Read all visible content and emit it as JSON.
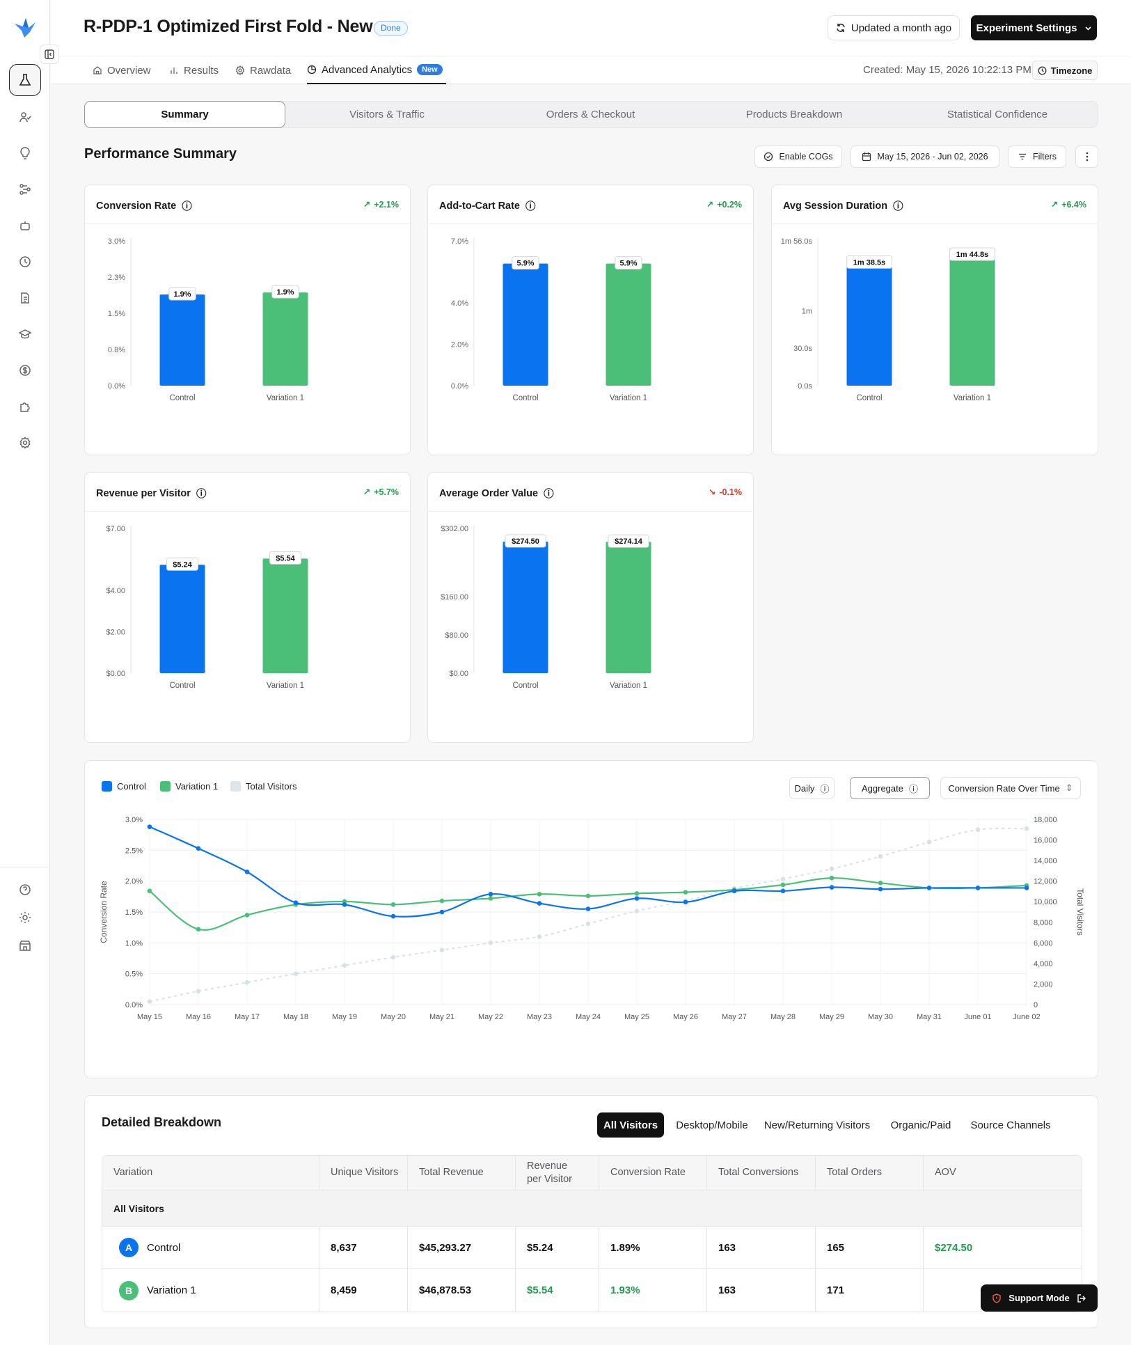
{
  "header": {
    "title": "R-PDP-1 Optimized First Fold - New",
    "status_badge": "Done",
    "updated_label": "Updated a month ago",
    "settings_label": "Experiment Settings"
  },
  "tabs": [
    {
      "label": "Overview",
      "icon": "home-icon"
    },
    {
      "label": "Results",
      "icon": "bar-chart-icon"
    },
    {
      "label": "Rawdata",
      "icon": "gear-icon"
    },
    {
      "label": "Advanced Analytics",
      "icon": "pie-chart-icon",
      "active": true,
      "badge": "New"
    }
  ],
  "created_label": "Created: May 15, 2026 10:22:13 PM",
  "timezone_label": "Timezone",
  "subtabs": [
    "Summary",
    "Visitors & Traffic",
    "Orders & Checkout",
    "Products Breakdown",
    "Statistical Confidence"
  ],
  "performance": {
    "title": "Performance Summary",
    "enable_cogs": "Enable COGs",
    "date_range": "May 15, 2026 - Jun 02, 2026",
    "filters": "Filters"
  },
  "colors": {
    "control": "#0a74f0",
    "variation": "#4bbf78",
    "visitors": "#dde6ea",
    "up": "#1f9d4c",
    "down": "#d33a2c"
  },
  "chart_data": [
    {
      "type": "bar",
      "title": "Conversion Rate",
      "delta": "+2.1%",
      "delta_dir": "up",
      "categories": [
        "Control",
        "Variation 1"
      ],
      "values": [
        1.89,
        1.93
      ],
      "data_labels": [
        "1.9%",
        "1.9%"
      ],
      "ylim": [
        0,
        3.0
      ],
      "y_ticks": [
        0,
        0.75,
        1.5,
        2.25,
        3.0
      ],
      "y_tick_labels": [
        "0.0%",
        "0.8%",
        "1.5%",
        "2.3%",
        "3.0%"
      ]
    },
    {
      "type": "bar",
      "title": "Add-to-Cart Rate",
      "delta": "+0.2%",
      "delta_dir": "up",
      "categories": [
        "Control",
        "Variation 1"
      ],
      "values": [
        5.9,
        5.9
      ],
      "data_labels": [
        "5.9%",
        "5.9%"
      ],
      "ylim": [
        0,
        7.0
      ],
      "y_ticks": [
        0,
        2.0,
        4.0,
        7.0
      ],
      "y_tick_labels": [
        "0.0%",
        "2.0%",
        "4.0%",
        "7.0%"
      ]
    },
    {
      "type": "bar",
      "title": "Avg Session Duration",
      "delta": "+6.4%",
      "delta_dir": "up",
      "categories": [
        "Control",
        "Variation 1"
      ],
      "values": [
        98.5,
        104.8
      ],
      "data_labels": [
        "1m 38.5s",
        "1m 44.8s"
      ],
      "ylim": [
        0,
        116
      ],
      "y_ticks": [
        0,
        30,
        60,
        116
      ],
      "y_tick_labels": [
        "0.0s",
        "30.0s",
        "1m",
        "1m 56.0s"
      ]
    },
    {
      "type": "bar",
      "title": "Revenue per Visitor",
      "delta": "+5.7%",
      "delta_dir": "up",
      "categories": [
        "Control",
        "Variation 1"
      ],
      "values": [
        5.24,
        5.54
      ],
      "data_labels": [
        "$5.24",
        "$5.54"
      ],
      "ylim": [
        0,
        7.0
      ],
      "y_ticks": [
        0,
        2.0,
        4.0,
        7.0
      ],
      "y_tick_labels": [
        "$0.00",
        "$2.00",
        "$4.00",
        "$7.00"
      ]
    },
    {
      "type": "bar",
      "title": "Average Order Value",
      "delta": "-0.1%",
      "delta_dir": "down",
      "categories": [
        "Control",
        "Variation 1"
      ],
      "values": [
        274.5,
        274.14
      ],
      "data_labels": [
        "$274.50",
        "$274.14"
      ],
      "ylim": [
        0,
        302
      ],
      "y_ticks": [
        0,
        80,
        160,
        302
      ],
      "y_tick_labels": [
        "$0.00",
        "$80.00",
        "$160.00",
        "$302.00"
      ]
    },
    {
      "type": "line",
      "legend": [
        "Control",
        "Variation 1",
        "Total Visitors"
      ],
      "buttons": {
        "daily": "Daily",
        "aggregate": "Aggregate",
        "metric_select": "Conversion Rate Over Time"
      },
      "x": [
        "May 15",
        "May 16",
        "May 17",
        "May 18",
        "May 19",
        "May 20",
        "May 21",
        "May 22",
        "May 23",
        "May 24",
        "May 25",
        "May 26",
        "May 27",
        "May 28",
        "May 29",
        "May 30",
        "May 31",
        "June 01",
        "June 02"
      ],
      "ylabel": "Conversion Rate",
      "y2label": "Total Visitors",
      "ylim": [
        0,
        3.0
      ],
      "y_tick_labels": [
        "0.0%",
        "0.5%",
        "1.0%",
        "1.5%",
        "2.0%",
        "2.5%",
        "3.0%"
      ],
      "y2lim": [
        0,
        18000
      ],
      "y2_tick_labels": [
        "0",
        "2,000",
        "4,000",
        "6,000",
        "8,000",
        "10,000",
        "12,000",
        "14,000",
        "16,000",
        "18,000"
      ],
      "series": [
        {
          "name": "Control",
          "axis": "left",
          "values": [
            2.88,
            2.53,
            2.15,
            1.65,
            1.62,
            1.43,
            1.5,
            1.79,
            1.64,
            1.55,
            1.72,
            1.66,
            1.84,
            1.84,
            1.9,
            1.87,
            1.89,
            1.89,
            1.89
          ]
        },
        {
          "name": "Variation 1",
          "axis": "left",
          "values": [
            1.84,
            1.22,
            1.45,
            1.62,
            1.67,
            1.62,
            1.68,
            1.72,
            1.79,
            1.76,
            1.8,
            1.82,
            1.86,
            1.94,
            2.05,
            1.97,
            1.89,
            1.89,
            1.93
          ]
        },
        {
          "name": "Total Visitors",
          "axis": "right",
          "values": [
            300,
            1300,
            2150,
            3000,
            3800,
            4600,
            5300,
            6000,
            6600,
            7850,
            9100,
            10100,
            11300,
            12200,
            13200,
            14400,
            15800,
            17000,
            17100
          ]
        }
      ]
    }
  ],
  "breakdown": {
    "title": "Detailed Breakdown",
    "filters": [
      "All Visitors",
      "Desktop/Mobile",
      "New/Returning Visitors",
      "Organic/Paid",
      "Source Channels"
    ],
    "columns": [
      "Variation",
      "Unique Visitors",
      "Total Revenue",
      "Revenue per Visitor",
      "Conversion Rate",
      "Total Conversions",
      "Total Orders",
      "AOV"
    ],
    "group_label": "All Visitors",
    "rows": [
      {
        "avatar": "A",
        "variation": "Control",
        "unique_visitors": "8,637",
        "total_revenue": "$45,293.27",
        "rpv": "$5.24",
        "conversion_rate": "1.89%",
        "total_conversions": "163",
        "total_orders": "165",
        "aov": "$274.50"
      },
      {
        "avatar": "B",
        "variation": "Variation 1",
        "unique_visitors": "8,459",
        "total_revenue": "$46,878.53",
        "rpv": "$5.54",
        "conversion_rate": "1.93%",
        "total_conversions": "163",
        "total_orders": "171",
        "aov": ""
      }
    ]
  },
  "support_label": "Support Mode"
}
